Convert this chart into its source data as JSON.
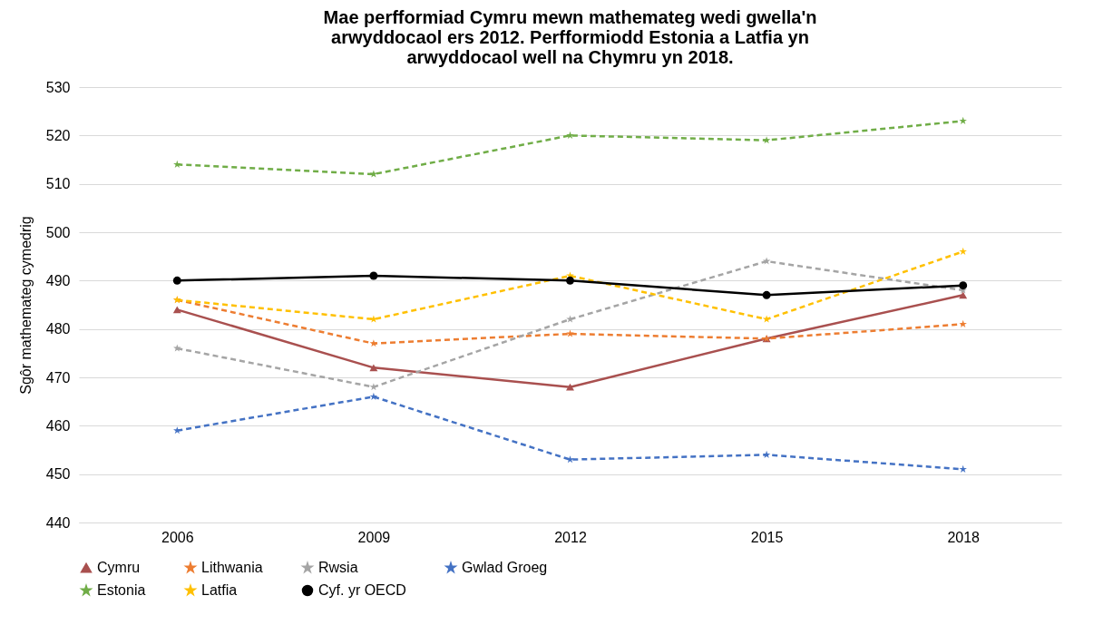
{
  "chart_data": {
    "type": "line",
    "title": "Mae perfformiad Cymru mewn mathemateg wedi gwella'n arwyddocaol ers 2012. Perfformiodd Estonia a Latfia yn arwyddocaol well na Chymru yn 2018.",
    "ylabel": "Sgôr mathemateg cymedrig",
    "categories": [
      "2006",
      "2009",
      "2012",
      "2015",
      "2018"
    ],
    "ylim": [
      440,
      530
    ],
    "yticks": [
      440,
      450,
      460,
      470,
      480,
      490,
      500,
      510,
      520,
      530
    ],
    "grid": "y",
    "legend": "bottom",
    "series": [
      {
        "name": "Cymru",
        "color": "#a9504f",
        "values": [
          484,
          472,
          468,
          478,
          487
        ],
        "marker": "triangle",
        "line_style": "solid"
      },
      {
        "name": "Lithwania",
        "color": "#ed7d31",
        "values": [
          486,
          477,
          479,
          478,
          481
        ],
        "marker": "star",
        "line_style": "dashed"
      },
      {
        "name": "Rwsia",
        "color": "#a5a5a5",
        "values": [
          476,
          468,
          482,
          494,
          488
        ],
        "marker": "star",
        "line_style": "dashed"
      },
      {
        "name": "Gwlad Groeg",
        "color": "#4472c4",
        "values": [
          459,
          466,
          453,
          454,
          451
        ],
        "marker": "star",
        "line_style": "dashed"
      },
      {
        "name": "Estonia",
        "color": "#70ad47",
        "values": [
          514,
          512,
          520,
          519,
          523
        ],
        "marker": "star",
        "line_style": "dashed"
      },
      {
        "name": "Latfia",
        "color": "#ffc000",
        "values": [
          486,
          482,
          491,
          482,
          496
        ],
        "marker": "star",
        "line_style": "dashed"
      },
      {
        "name": "Cyf. yr OECD",
        "color": "#000000",
        "values": [
          490,
          491,
          490,
          487,
          489
        ],
        "marker": "circle",
        "line_style": "solid"
      }
    ]
  }
}
